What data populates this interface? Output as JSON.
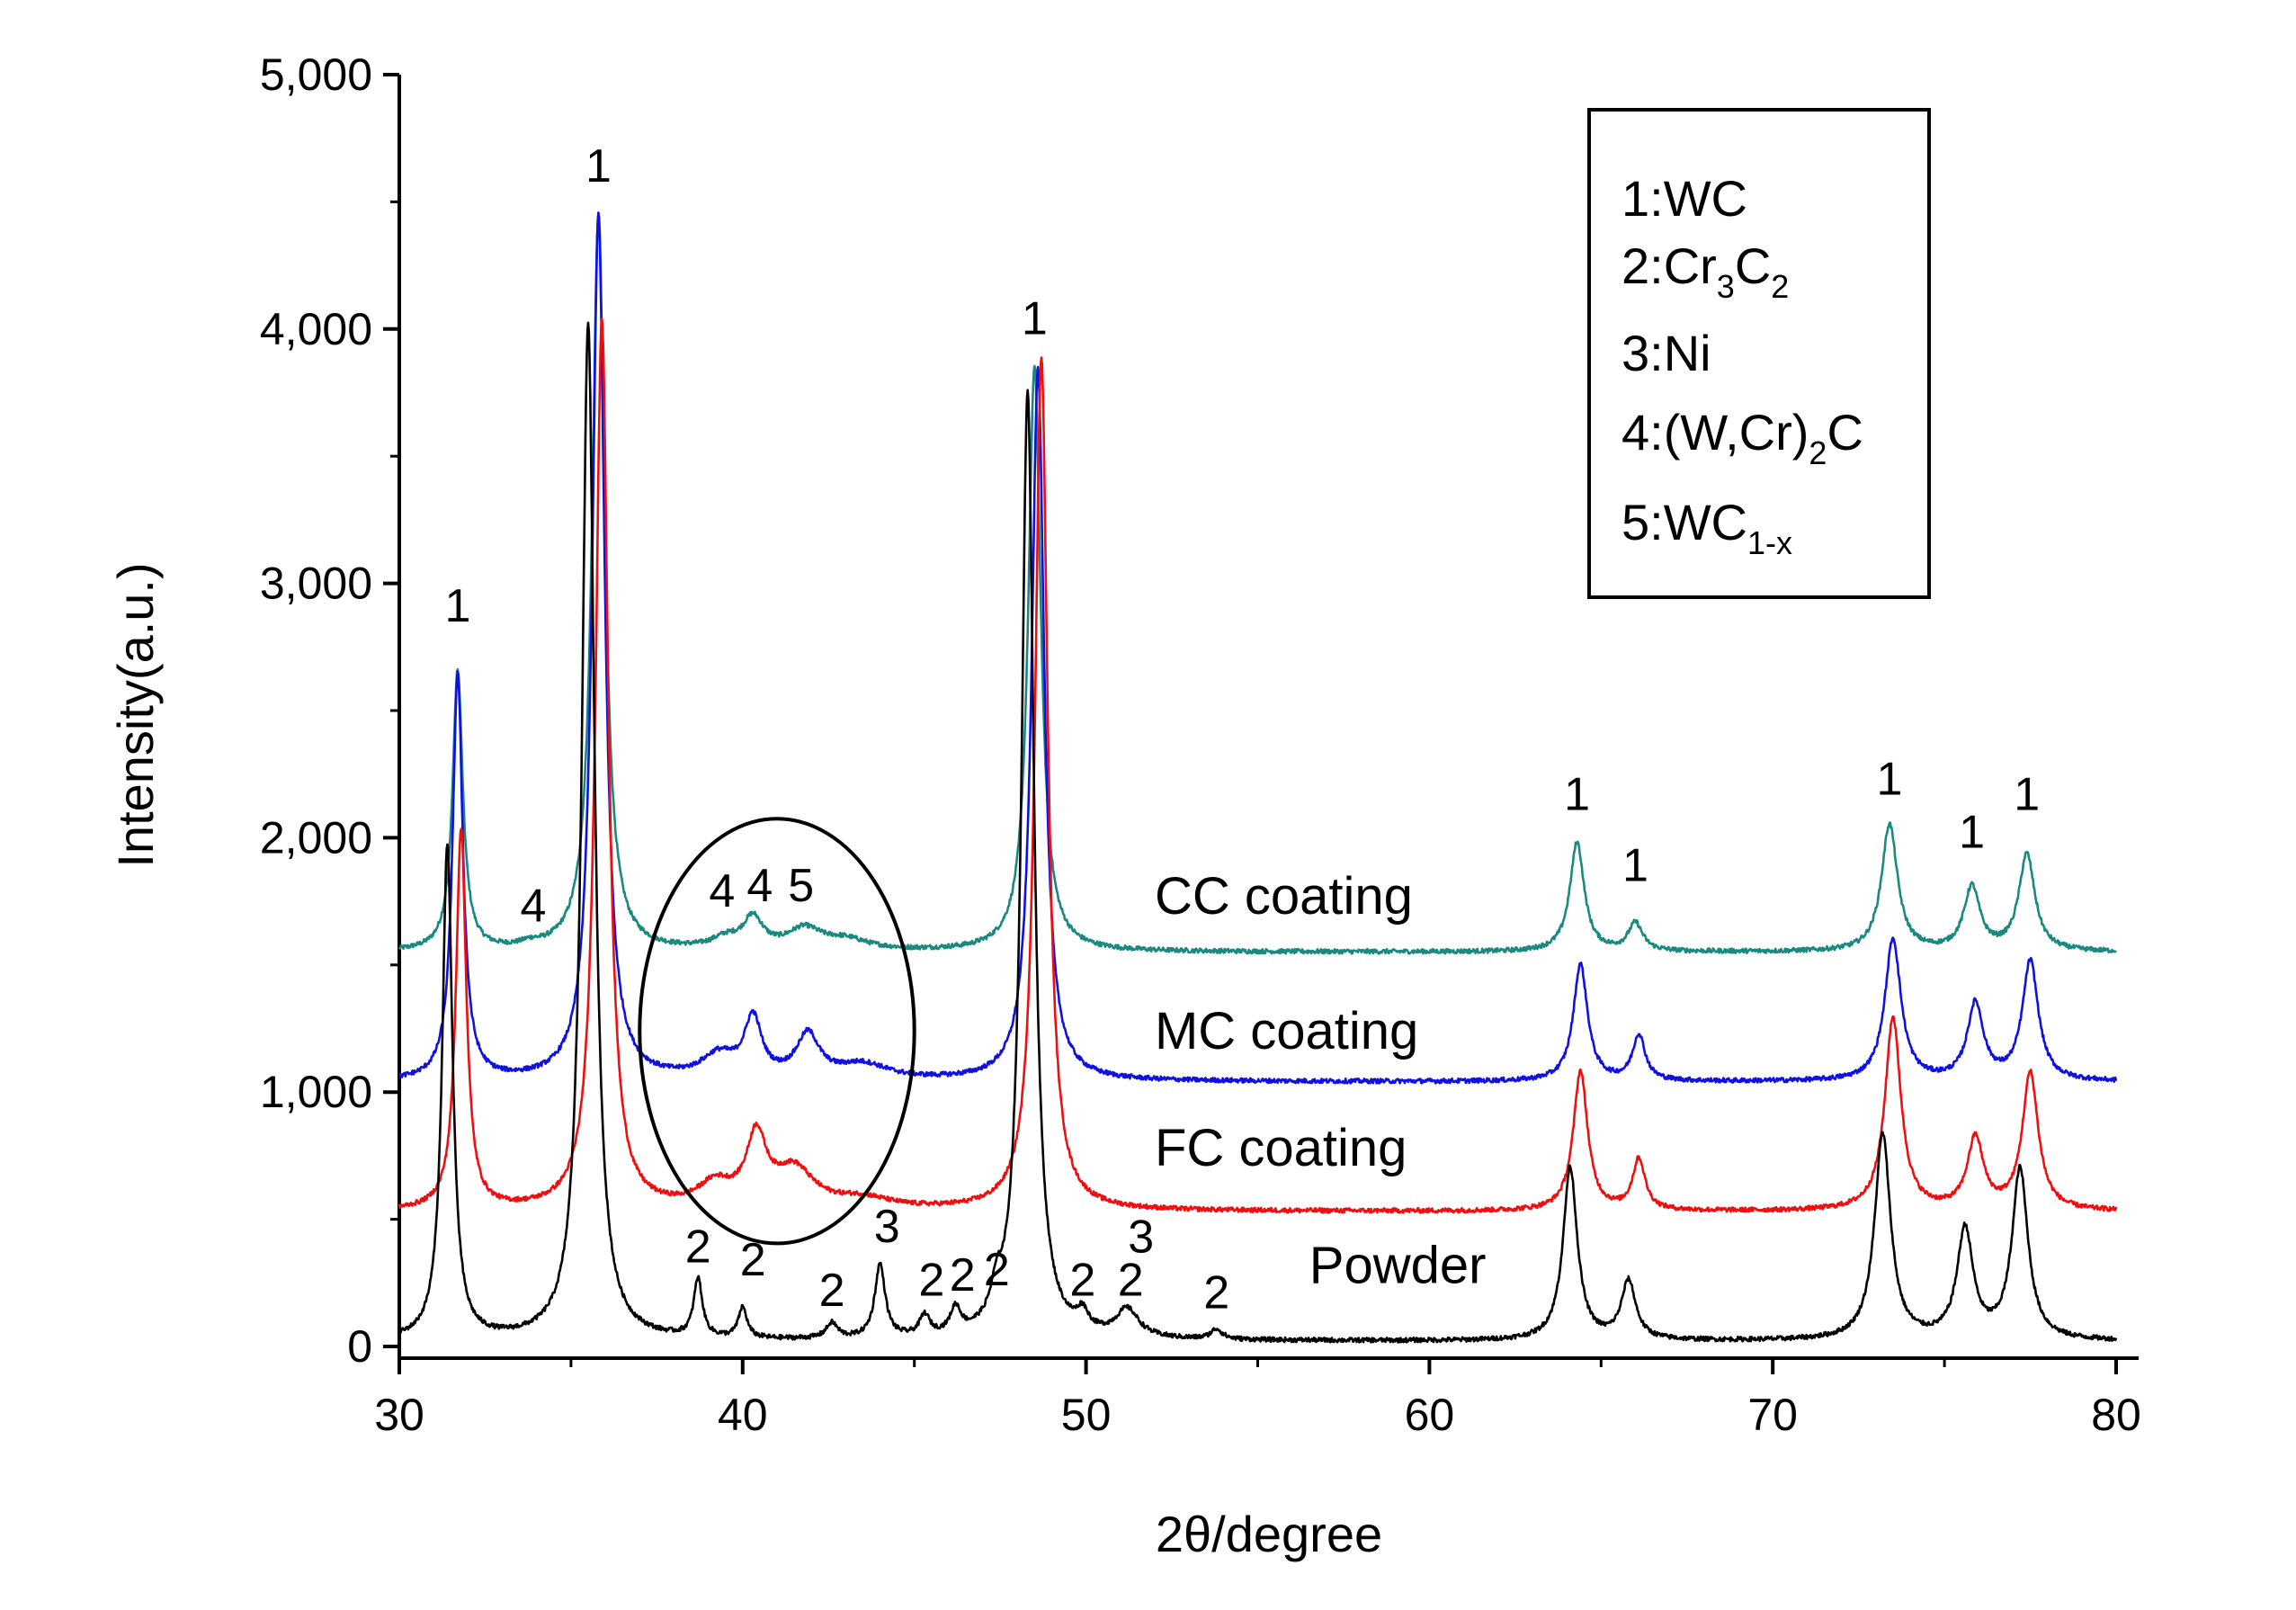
{
  "chart_data": {
    "type": "line",
    "title": "",
    "xlabel": "2θ/degree",
    "ylabel": "Intensity(a.u.)",
    "xlim": [
      30,
      80
    ],
    "ylim": [
      0,
      5000
    ],
    "x_ticks": [
      30,
      40,
      50,
      60,
      70,
      80
    ],
    "x_tick_labels": [
      "30",
      "40",
      "50",
      "60",
      "70",
      "80"
    ],
    "y_ticks": [
      0,
      1000,
      2000,
      3000,
      4000,
      5000
    ],
    "y_tick_labels": [
      "0",
      "1,000",
      "2,000",
      "3,000",
      "4,000",
      "5,000"
    ],
    "grid": false,
    "legend": {
      "placement": "top-right",
      "entries": [
        {
          "num": "1:",
          "text": "WC",
          "sub": "",
          "after": ""
        },
        {
          "num": "2:",
          "text": "Cr",
          "sub": "3",
          "after": "C",
          "sub2": "2"
        },
        {
          "num": "3:",
          "text": "Ni",
          "sub": "",
          "after": ""
        },
        {
          "num": "4:",
          "text": "(W,Cr)",
          "sub": "2",
          "after": "C"
        },
        {
          "num": "5:",
          "text": "WC",
          "sub": "1-x",
          "after": ""
        }
      ]
    },
    "series": [
      {
        "name": "CC coating",
        "color": "#1a8a80",
        "baseline": 1550,
        "peaks": [
          [
            31.7,
            1100,
            0.18
          ],
          [
            35.8,
            2900,
            0.22
          ],
          [
            40.3,
            120,
            0.35
          ],
          [
            41.8,
            80,
            0.6
          ],
          [
            48.5,
            2300,
            0.22
          ],
          [
            64.3,
            430,
            0.25
          ],
          [
            66.0,
            110,
            0.25
          ],
          [
            73.4,
            500,
            0.28
          ],
          [
            75.8,
            250,
            0.28
          ],
          [
            77.4,
            380,
            0.28
          ],
          [
            33.8,
            15,
            0.3
          ],
          [
            39.5,
            40,
            0.5
          ],
          [
            43.0,
            40,
            0.8
          ]
        ],
        "labels": [
          {
            "x": 31.7,
            "y": 2850,
            "text": "1"
          },
          {
            "x": 35.8,
            "y": 4580,
            "text": "1"
          },
          {
            "x": 48.5,
            "y": 3980,
            "text": "1"
          },
          {
            "x": 64.3,
            "y": 2110,
            "text": "1"
          },
          {
            "x": 66.0,
            "y": 1830,
            "text": "1"
          },
          {
            "x": 73.4,
            "y": 2170,
            "text": "1"
          },
          {
            "x": 75.8,
            "y": 1960,
            "text": "1"
          },
          {
            "x": 77.4,
            "y": 2110,
            "text": "1"
          },
          {
            "x": 33.9,
            "y": 1670,
            "text": "4"
          },
          {
            "x": 39.4,
            "y": 1730,
            "text": "4"
          },
          {
            "x": 40.5,
            "y": 1750,
            "text": "4"
          },
          {
            "x": 41.7,
            "y": 1750,
            "text": "5"
          }
        ],
        "series_label": {
          "x": 52.0,
          "y": 1700
        }
      },
      {
        "name": "MC coating",
        "color": "#1010e0",
        "baseline": 1040,
        "peaks": [
          [
            31.7,
            1600,
            0.18
          ],
          [
            35.8,
            3400,
            0.22
          ],
          [
            39.3,
            90,
            0.6
          ],
          [
            40.3,
            230,
            0.3
          ],
          [
            41.9,
            170,
            0.4
          ],
          [
            43.5,
            60,
            0.9
          ],
          [
            48.6,
            2800,
            0.22
          ],
          [
            64.4,
            460,
            0.25
          ],
          [
            66.1,
            180,
            0.22
          ],
          [
            73.5,
            560,
            0.28
          ],
          [
            75.9,
            300,
            0.28
          ],
          [
            77.5,
            470,
            0.28
          ]
        ],
        "labels": [],
        "series_label": {
          "x": 52.0,
          "y": 1170
        }
      },
      {
        "name": "FC coating",
        "color": "#ee1010",
        "baseline": 530,
        "peaks": [
          [
            31.8,
            1500,
            0.18
          ],
          [
            35.9,
            3500,
            0.22
          ],
          [
            39.2,
            90,
            0.6
          ],
          [
            40.4,
            270,
            0.35
          ],
          [
            41.5,
            150,
            0.7
          ],
          [
            43.5,
            40,
            1.0
          ],
          [
            48.7,
            3350,
            0.22
          ],
          [
            64.4,
            550,
            0.25
          ],
          [
            66.1,
            200,
            0.22
          ],
          [
            73.5,
            760,
            0.28
          ],
          [
            75.9,
            280,
            0.28
          ],
          [
            77.5,
            540,
            0.28
          ]
        ],
        "labels": [],
        "series_label": {
          "x": 52.0,
          "y": 710
        }
      },
      {
        "name": "Powder",
        "color": "#000000",
        "baseline": 20,
        "peaks": [
          [
            31.4,
            1950,
            0.18
          ],
          [
            35.5,
            4000,
            0.22
          ],
          [
            38.7,
            230,
            0.15
          ],
          [
            40.0,
            120,
            0.15
          ],
          [
            42.6,
            60,
            0.2
          ],
          [
            44.0,
            290,
            0.18
          ],
          [
            45.3,
            80,
            0.18
          ],
          [
            46.2,
            100,
            0.18
          ],
          [
            47.4,
            110,
            0.2
          ],
          [
            48.3,
            3720,
            0.22
          ],
          [
            49.9,
            70,
            0.2
          ],
          [
            51.2,
            110,
            0.4
          ],
          [
            53.8,
            40,
            0.2
          ],
          [
            64.1,
            680,
            0.25
          ],
          [
            65.8,
            230,
            0.25
          ],
          [
            73.2,
            810,
            0.28
          ],
          [
            75.6,
            430,
            0.28
          ],
          [
            77.2,
            670,
            0.28
          ]
        ],
        "labels": [
          {
            "x": 38.7,
            "y": 330,
            "text": "2"
          },
          {
            "x": 40.3,
            "y": 280,
            "text": "2"
          },
          {
            "x": 42.6,
            "y": 160,
            "text": "2"
          },
          {
            "x": 44.2,
            "y": 410,
            "text": "3"
          },
          {
            "x": 45.5,
            "y": 200,
            "text": "2"
          },
          {
            "x": 46.4,
            "y": 220,
            "text": "2"
          },
          {
            "x": 47.4,
            "y": 240,
            "text": "2"
          },
          {
            "x": 49.9,
            "y": 200,
            "text": "2"
          },
          {
            "x": 51.6,
            "y": 370,
            "text": "3"
          },
          {
            "x": 51.3,
            "y": 200,
            "text": "2"
          },
          {
            "x": 53.8,
            "y": 150,
            "text": "2"
          }
        ],
        "series_label": {
          "x": 56.5,
          "y": 250
        }
      }
    ],
    "annotation": "ellipse highlighting peaks 4, 4, 5 around 2θ ≈ 41",
    "ellipse": {
      "cx": 41.0,
      "cy": 1240,
      "rx": 4.0,
      "ry": 835
    }
  }
}
